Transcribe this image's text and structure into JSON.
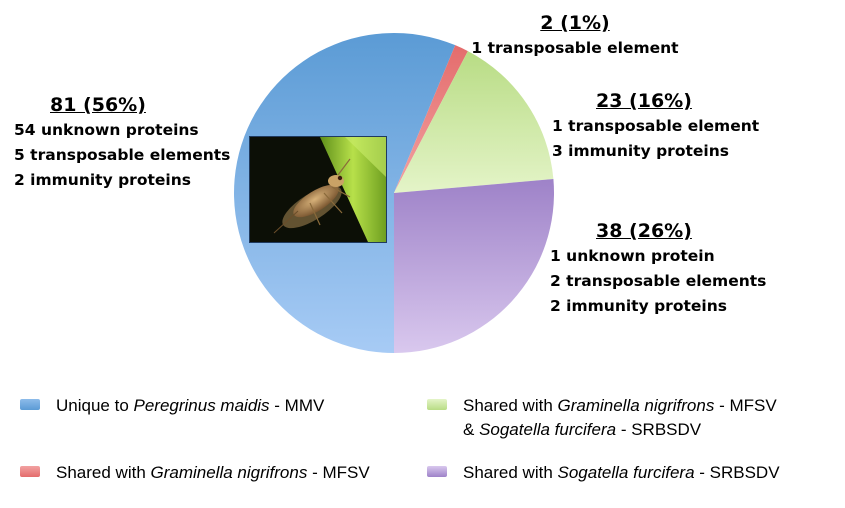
{
  "chart_data": {
    "type": "pie",
    "slices": [
      {
        "id": "unique",
        "value": 81,
        "percent": 56,
        "head": "81 (56%)",
        "details": [
          "54 unknown  proteins",
          "5 transposable  elements",
          "2 immunity  proteins"
        ],
        "color_top": "#5b9bd5",
        "color_bottom": "#a7cbf5"
      },
      {
        "id": "mfsv",
        "value": 2,
        "percent": 1,
        "head": "2 (1%)",
        "details": [
          "1 transposable  element"
        ],
        "color_top": "#e46c6c",
        "color_bottom": "#f2a2a2"
      },
      {
        "id": "mfsv-srbsdv",
        "value": 23,
        "percent": 16,
        "head": "23 (16%)",
        "details": [
          "1 transposable  element",
          "3 immunity  proteins"
        ],
        "color_top": "#b8dc84",
        "color_bottom": "#e4f4c8"
      },
      {
        "id": "srbsdv",
        "value": 38,
        "percent": 26,
        "head": "38 (26%)",
        "details": [
          "1 unknown  protein",
          "2 transposable  elements",
          "2 immunity  proteins"
        ],
        "color_top": "#9e82c8",
        "color_bottom": "#d9c8ee"
      }
    ],
    "legend": [
      {
        "slice": "unique",
        "pre": "Unique to ",
        "italic": "Peregrinus maidis",
        "post": " - MMV",
        "line2_pre": "",
        "line2_italic": "",
        "line2_post": ""
      },
      {
        "slice": "mfsv-srbsdv",
        "pre": "Shared with ",
        "italic": "Graminella nigrifrons",
        "post": " - MFSV",
        "line2_pre": "& ",
        "line2_italic": "Sogatella furcifera",
        "line2_post": " - SRBSDV"
      },
      {
        "slice": "mfsv",
        "pre": "Shared with ",
        "italic": "Graminella nigrifrons",
        "post": " - MFSV",
        "line2_pre": "",
        "line2_italic": "",
        "line2_post": ""
      },
      {
        "slice": "srbsdv",
        "pre": "Shared with ",
        "italic": "Sogatella furcifera",
        "post": " - SRBSDV",
        "line2_pre": "",
        "line2_italic": "",
        "line2_post": ""
      }
    ]
  },
  "inset_photo": {
    "subject": "planthopper-insect-photo"
  }
}
